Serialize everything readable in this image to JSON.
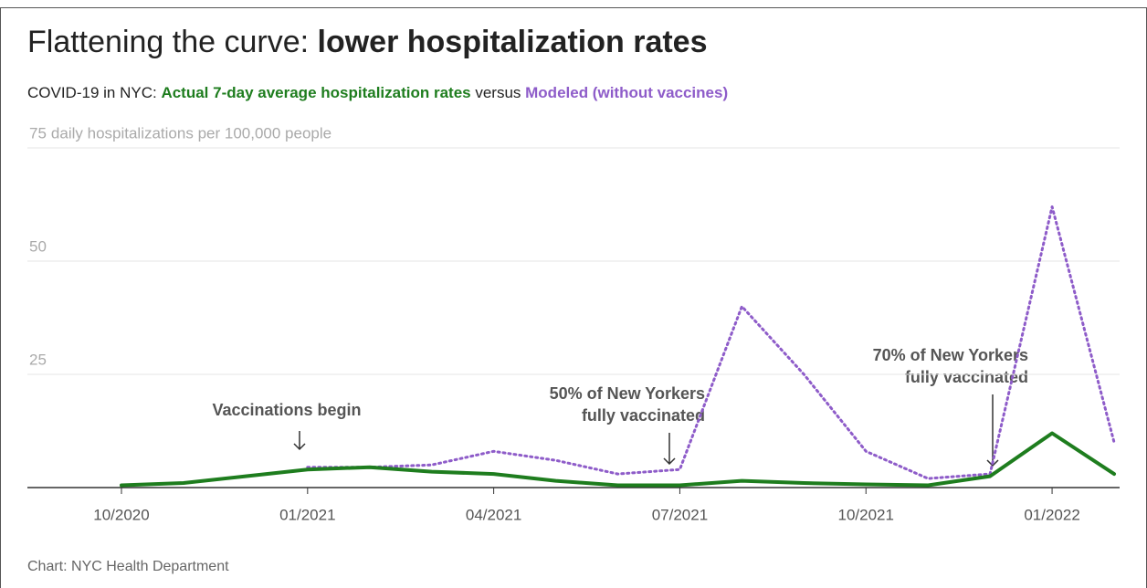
{
  "chart_data": {
    "type": "line",
    "title": "Flattening the curve: ",
    "title_bold": "lower hospitalization rates",
    "subtitle_prefix": "COVID-19 in NYC: ",
    "subtitle_joiner": " versus ",
    "y_label": "daily hospitalizations per 100,000 people",
    "source": "Chart: NYC Health Department",
    "x": [
      "2020-10",
      "2020-11",
      "2020-12",
      "2021-01",
      "2021-02",
      "2021-03",
      "2021-04",
      "2021-05",
      "2021-06",
      "2021-07",
      "2021-08",
      "2021-09",
      "2021-10",
      "2021-11",
      "2021-12",
      "2022-01",
      "2022-02"
    ],
    "series": [
      {
        "name": "Actual 7-day average hospitalization rates",
        "color": "#1e7d1e",
        "values": [
          0.5,
          1,
          2.5,
          4,
          4.5,
          3.5,
          3,
          1.5,
          0.5,
          0.5,
          1.5,
          1,
          0.7,
          0.5,
          2.5,
          12,
          3
        ]
      },
      {
        "name": "Modeled (without vaccines)",
        "color": "#8e5cc9",
        "values": [
          null,
          null,
          null,
          4.5,
          4.5,
          5,
          8,
          6,
          3,
          4,
          40,
          25,
          8,
          2,
          3,
          62,
          10
        ]
      }
    ],
    "annotations": [
      "Vaccinations begin",
      "50% of New Yorkers",
      "fully vaccinated",
      "70% of New Yorkers",
      "fully vaccinated"
    ],
    "xlim": [
      "2020-10",
      "2022-02"
    ],
    "xticks": [
      {
        "value": "2020-10",
        "label": "10/2020"
      },
      {
        "value": "2021-01",
        "label": "01/2021"
      },
      {
        "value": "2021-04",
        "label": "04/2021"
      },
      {
        "value": "2021-07",
        "label": "07/2021"
      },
      {
        "value": "2021-10",
        "label": "10/2021"
      },
      {
        "value": "2022-01",
        "label": "01/2022"
      }
    ],
    "ylim": [
      0,
      75
    ],
    "yticks": [
      25,
      50,
      75
    ],
    "grid": true
  }
}
